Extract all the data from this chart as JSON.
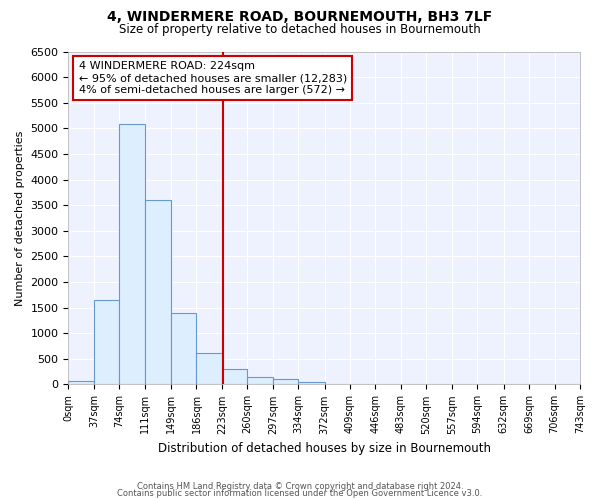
{
  "title": "4, WINDERMERE ROAD, BOURNEMOUTH, BH3 7LF",
  "subtitle": "Size of property relative to detached houses in Bournemouth",
  "xlabel": "Distribution of detached houses by size in Bournemouth",
  "ylabel": "Number of detached properties",
  "bin_edges": [
    0,
    37,
    74,
    111,
    149,
    186,
    223,
    260,
    297,
    334,
    372,
    409,
    446,
    483,
    520,
    557,
    594,
    632,
    669,
    706,
    743
  ],
  "counts": [
    75,
    1650,
    5080,
    3600,
    1400,
    620,
    300,
    150,
    100,
    50,
    0,
    0,
    0,
    0,
    0,
    0,
    0,
    0,
    0,
    0
  ],
  "property_size": 224,
  "property_label": "4 WINDERMERE ROAD: 224sqm",
  "annotation_line1": "← 95% of detached houses are smaller (12,283)",
  "annotation_line2": "4% of semi-detached houses are larger (572) →",
  "vline_color": "#cc0000",
  "bar_face_color": "#ddeeff",
  "bar_edge_color": "#6699cc",
  "annotation_box_edge_color": "#cc0000",
  "background_color": "#ffffff",
  "plot_bg_color": "#eef2ff",
  "grid_color": "#ffffff",
  "ylim": [
    0,
    6500
  ],
  "ytick_max": 6500,
  "ytick_step": 500,
  "footer_line1": "Contains HM Land Registry data © Crown copyright and database right 2024.",
  "footer_line2": "Contains public sector information licensed under the Open Government Licence v3.0."
}
